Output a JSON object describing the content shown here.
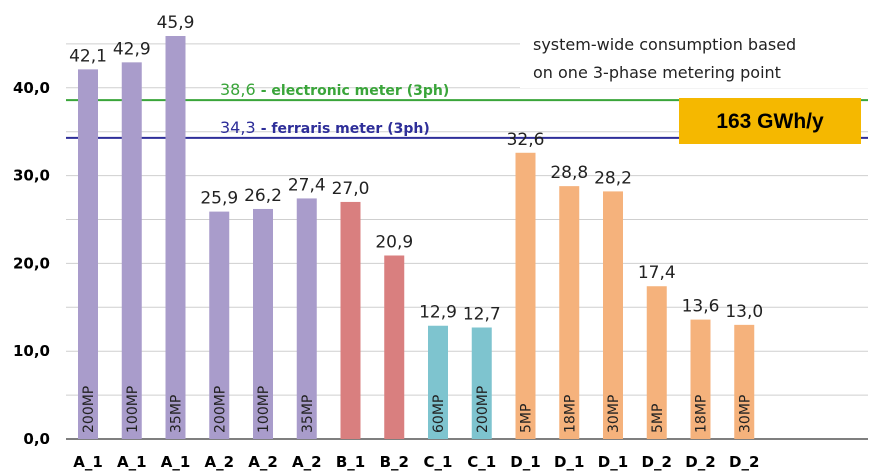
{
  "chart_data": {
    "type": "bar",
    "title": "",
    "xlabel": "",
    "ylabel": "",
    "ylim": [
      0,
      47
    ],
    "yticks": [
      "0,0",
      "10,0",
      "20,0",
      "30,0",
      "40,0"
    ],
    "grid": true,
    "categories": [
      "A_1",
      "A_1",
      "A_1",
      "A_2",
      "A_2",
      "A_2",
      "B_1",
      "B_2",
      "C_1",
      "C_1",
      "D_1",
      "D_1",
      "D_1",
      "D_2",
      "D_2",
      "D_2"
    ],
    "values": [
      42.1,
      42.9,
      45.9,
      25.9,
      26.2,
      27.4,
      27.0,
      20.9,
      12.9,
      12.7,
      32.6,
      28.8,
      28.2,
      17.4,
      13.6,
      13.0
    ],
    "value_labels": [
      "42,1",
      "42,9",
      "45,9",
      "25,9",
      "26,2",
      "27,4",
      "27,0",
      "20,9",
      "12,9",
      "12,7",
      "32,6",
      "28,8",
      "28,2",
      "17,4",
      "13,6",
      "13,0"
    ],
    "bar_labels": [
      "200MP",
      "100MP",
      "35MP",
      "200MP",
      "100MP",
      "35MP",
      "",
      "",
      "60MP",
      "200MP",
      "5MP",
      "18MP",
      "30MP",
      "5MP",
      "18MP",
      "30MP"
    ],
    "bar_colors": [
      "#a99ccb",
      "#a99ccb",
      "#a99ccb",
      "#a99ccb",
      "#a99ccb",
      "#a99ccb",
      "#d97f7f",
      "#d97f7f",
      "#7ec4cf",
      "#7ec4cf",
      "#f5b27c",
      "#f5b27c",
      "#f5b27c",
      "#f5b27c",
      "#f5b27c",
      "#f5b27c"
    ],
    "reference_lines": [
      {
        "value": 38.6,
        "value_label": "38,6",
        "label": "- electronic meter (3ph)",
        "color": "#3aa53a"
      },
      {
        "value": 34.3,
        "value_label": "34,3",
        "label": "- ferraris meter (3ph)",
        "color": "#2e2e99"
      }
    ],
    "annotation": [
      "system-wide consumption based",
      "on one 3-phase metering point"
    ],
    "badge": {
      "text": "163 GWh/y",
      "color": "#f5b800"
    }
  }
}
